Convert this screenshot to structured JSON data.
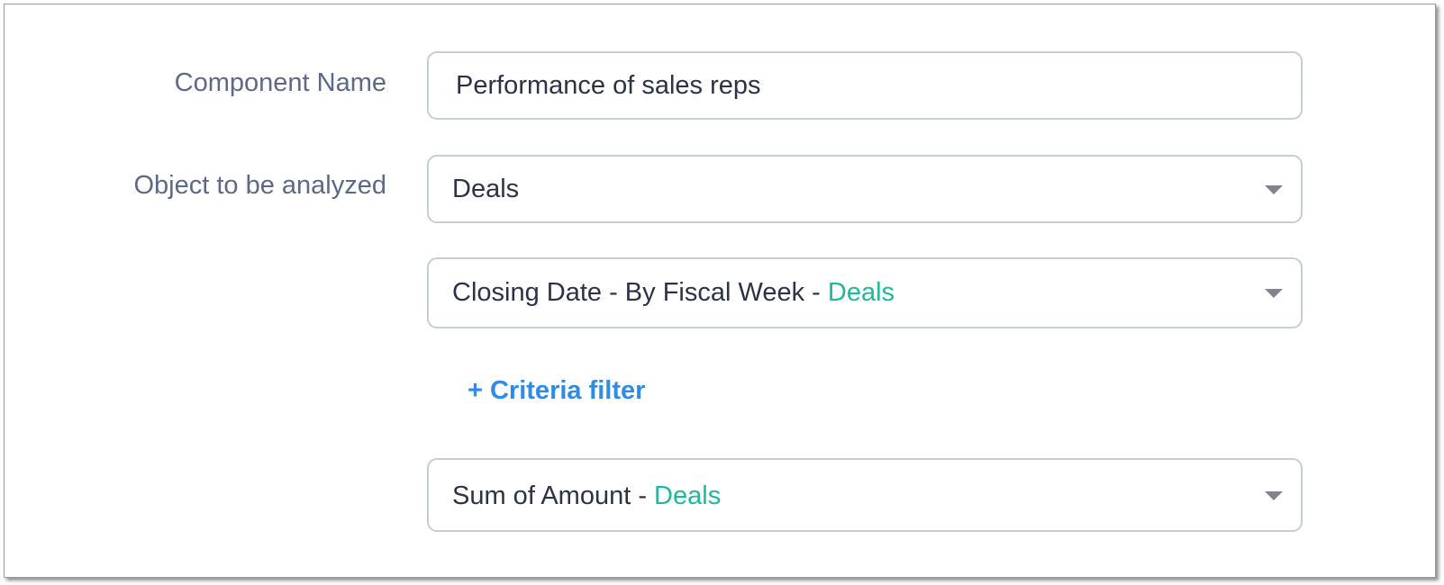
{
  "form": {
    "component_name_label": "Component Name",
    "component_name_value": "Performance of sales reps",
    "object_label": "Object to be analyzed",
    "object_value": "Deals",
    "grouping_value": "Closing Date - By Fiscal Week - ",
    "grouping_module": "Deals",
    "criteria_filter_label": "+ Criteria filter",
    "measure_value": "Sum of Amount - ",
    "measure_module": "Deals"
  },
  "colors": {
    "accent_teal": "#1fb89b",
    "link_blue": "#2f8be6",
    "label_gray": "#5d6987"
  },
  "icons": {
    "dropdown": "caret-down-icon"
  }
}
